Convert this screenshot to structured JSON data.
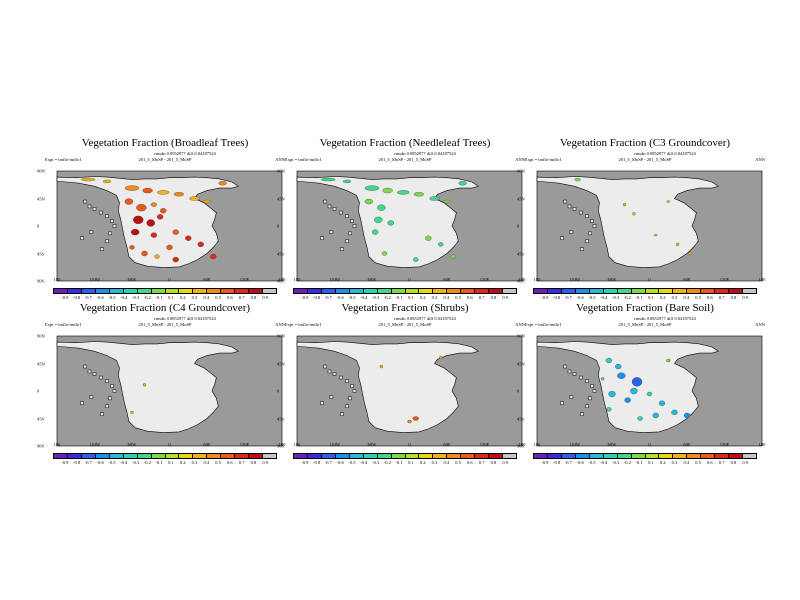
{
  "colors": {
    "ocean": "#9a9a9a",
    "land": "#ececec",
    "palette": [
      "#6a1fb8",
      "#3d2bd6",
      "#2a5fe8",
      "#1f8fe8",
      "#29b6d8",
      "#2fd0b8",
      "#3fd88a",
      "#7ad84a",
      "#b4de2a",
      "#e4d81a",
      "#f0b018",
      "#ec8a1a",
      "#e85a1a",
      "#dc2a1a",
      "#b81010",
      "#c4c4c4"
    ]
  },
  "colorbar_ticks": [
    "-0.9",
    "-0.8",
    "-0.7",
    "-0.6",
    "-0.5",
    "-0.4",
    "-0.3",
    "-0.2",
    "-0.1",
    "0.1",
    "0.2",
    "0.3",
    "0.4",
    "0.5",
    "0.6",
    "0.7",
    "0.8",
    "0.9"
  ],
  "x_ticks": [
    "180",
    "120W",
    "60W",
    "0",
    "60E",
    "120E",
    "180"
  ],
  "y_ticks": [
    "90N",
    "45N",
    "0",
    "45S",
    "90S"
  ],
  "chart_data": [
    {
      "type": "heatmap",
      "title": "Vegetation Fraction (Broadleaf Trees)",
      "stats": "rmsdn 0.0952977  diff 0.04187524",
      "expt": "Expt = tmflo-tmflo1",
      "sim": "201_5_MoSP - 201_5_MoSP",
      "period": "ANN",
      "features": [
        {
          "lon": -130,
          "lat": 76,
          "value": 0.2,
          "w": 14,
          "h": 3
        },
        {
          "lon": -100,
          "lat": 73,
          "value": 0.2,
          "w": 8,
          "h": 3
        },
        {
          "lon": -60,
          "lat": 62,
          "value": 0.4,
          "w": 14,
          "h": 5
        },
        {
          "lon": -35,
          "lat": 58,
          "value": 0.5,
          "w": 10,
          "h": 5
        },
        {
          "lon": -10,
          "lat": 55,
          "value": 0.3,
          "w": 12,
          "h": 4
        },
        {
          "lon": 15,
          "lat": 52,
          "value": 0.4,
          "w": 10,
          "h": 4
        },
        {
          "lon": 40,
          "lat": 45,
          "value": 0.3,
          "w": 10,
          "h": 4
        },
        {
          "lon": 60,
          "lat": 40,
          "value": 0.3,
          "w": 8,
          "h": 3
        },
        {
          "lon": 85,
          "lat": 70,
          "value": 0.4,
          "w": 8,
          "h": 4
        },
        {
          "lon": -65,
          "lat": 40,
          "value": 0.5,
          "w": 8,
          "h": 6
        },
        {
          "lon": -45,
          "lat": 30,
          "value": 0.6,
          "w": 10,
          "h": 7
        },
        {
          "lon": -25,
          "lat": 35,
          "value": 0.4,
          "w": 6,
          "h": 4
        },
        {
          "lon": -10,
          "lat": 25,
          "value": 0.6,
          "w": 6,
          "h": 5
        },
        {
          "lon": -50,
          "lat": 10,
          "value": 0.9,
          "w": 10,
          "h": 8
        },
        {
          "lon": -30,
          "lat": 5,
          "value": 0.9,
          "w": 8,
          "h": 7
        },
        {
          "lon": -15,
          "lat": 15,
          "value": 0.7,
          "w": 6,
          "h": 5
        },
        {
          "lon": -55,
          "lat": -10,
          "value": 0.8,
          "w": 8,
          "h": 6
        },
        {
          "lon": -25,
          "lat": -15,
          "value": 0.7,
          "w": 6,
          "h": 5
        },
        {
          "lon": 10,
          "lat": -10,
          "value": 0.6,
          "w": 6,
          "h": 5
        },
        {
          "lon": 30,
          "lat": -20,
          "value": 0.7,
          "w": 6,
          "h": 5
        },
        {
          "lon": 50,
          "lat": -30,
          "value": 0.7,
          "w": 6,
          "h": 5
        },
        {
          "lon": 0,
          "lat": -35,
          "value": 0.6,
          "w": 6,
          "h": 5
        },
        {
          "lon": -40,
          "lat": -45,
          "value": 0.5,
          "w": 6,
          "h": 5
        },
        {
          "lon": -20,
          "lat": -50,
          "value": 0.3,
          "w": 5,
          "h": 4
        },
        {
          "lon": 10,
          "lat": -55,
          "value": 0.7,
          "w": 6,
          "h": 5
        },
        {
          "lon": 70,
          "lat": -50,
          "value": 0.7,
          "w": 6,
          "h": 5
        },
        {
          "lon": -60,
          "lat": -35,
          "value": 0.5,
          "w": 5,
          "h": 4
        }
      ]
    },
    {
      "type": "heatmap",
      "title": "Vegetation Fraction (Needleleaf Trees)",
      "stats": "rmsdn 0.0852977  diff 0.04187524",
      "expt": "Expt = tmflo-tmflo1",
      "sim": "201_5_MoSP - 201_5_MoSP",
      "period": "ANN",
      "features": [
        {
          "lon": -130,
          "lat": 76,
          "value": -0.3,
          "w": 14,
          "h": 3
        },
        {
          "lon": -100,
          "lat": 73,
          "value": -0.3,
          "w": 8,
          "h": 3
        },
        {
          "lon": -60,
          "lat": 62,
          "value": -0.3,
          "w": 14,
          "h": 5
        },
        {
          "lon": -35,
          "lat": 58,
          "value": -0.2,
          "w": 10,
          "h": 5
        },
        {
          "lon": -10,
          "lat": 55,
          "value": -0.3,
          "w": 12,
          "h": 4
        },
        {
          "lon": 15,
          "lat": 52,
          "value": -0.2,
          "w": 10,
          "h": 4
        },
        {
          "lon": 40,
          "lat": 45,
          "value": -0.3,
          "w": 10,
          "h": 4
        },
        {
          "lon": 60,
          "lat": 40,
          "value": -0.2,
          "w": 8,
          "h": 3
        },
        {
          "lon": 85,
          "lat": 70,
          "value": -0.3,
          "w": 8,
          "h": 4
        },
        {
          "lon": -65,
          "lat": 40,
          "value": -0.2,
          "w": 8,
          "h": 5
        },
        {
          "lon": -45,
          "lat": 30,
          "value": -0.3,
          "w": 8,
          "h": 6
        },
        {
          "lon": -50,
          "lat": 10,
          "value": -0.3,
          "w": 8,
          "h": 6
        },
        {
          "lon": -30,
          "lat": 5,
          "value": -0.3,
          "w": 6,
          "h": 5
        },
        {
          "lon": -55,
          "lat": -10,
          "value": -0.3,
          "w": 6,
          "h": 5
        },
        {
          "lon": 30,
          "lat": -20,
          "value": -0.2,
          "w": 6,
          "h": 5
        },
        {
          "lon": 50,
          "lat": -30,
          "value": -0.3,
          "w": 5,
          "h": 4
        },
        {
          "lon": -40,
          "lat": -45,
          "value": -0.2,
          "w": 5,
          "h": 4
        },
        {
          "lon": 10,
          "lat": -55,
          "value": -0.3,
          "w": 5,
          "h": 4
        },
        {
          "lon": 70,
          "lat": -50,
          "value": -0.2,
          "w": 5,
          "h": 4
        }
      ]
    },
    {
      "type": "heatmap",
      "title": "Vegetation Fraction (C3 Groundcover)",
      "stats": "rmsdn 0.0852977  diff 0.04187524",
      "expt": "Expt = tmflo-tmflo1",
      "sim": "201_5_MoSP - 201_5_MoSP",
      "period": "ANN",
      "features": [
        {
          "lon": -115,
          "lat": 76,
          "value": -0.2,
          "w": 6,
          "h": 3
        },
        {
          "lon": -40,
          "lat": 35,
          "value": 0.3,
          "w": 3,
          "h": 3
        },
        {
          "lon": -25,
          "lat": 20,
          "value": 0.2,
          "w": 3,
          "h": 3
        },
        {
          "lon": 10,
          "lat": -15,
          "value": 0.2,
          "w": 3,
          "h": 2
        },
        {
          "lon": 45,
          "lat": -30,
          "value": 0.3,
          "w": 3,
          "h": 3
        },
        {
          "lon": 65,
          "lat": -45,
          "value": 0.2,
          "w": 3,
          "h": 3
        },
        {
          "lon": 30,
          "lat": 40,
          "value": 0.2,
          "w": 3,
          "h": 2
        }
      ]
    },
    {
      "type": "heatmap",
      "title": "Vegetation Fraction (C4 Groundcover)",
      "stats": "rmsdn 0.0852977  diff 0.04187524",
      "expt": "Expt = tmflo-tmflo1",
      "sim": "201_5_MoSP - 201_5_MoSP",
      "period": "ANN",
      "features": [
        {
          "lon": -40,
          "lat": 10,
          "value": 0.2,
          "w": 3,
          "h": 3
        },
        {
          "lon": -60,
          "lat": -35,
          "value": 0.3,
          "w": 3,
          "h": 3
        }
      ]
    },
    {
      "type": "heatmap",
      "title": "Vegetation Fraction (Shrubs)",
      "stats": "rmsdn 0.0852977  diff 0.04187524",
      "expt": "Expt = tmflo-tmflo1",
      "sim": "201_5_MoSP - 201_5_MoSP",
      "period": "ANN",
      "features": [
        {
          "lon": 50,
          "lat": 55,
          "value": 0.3,
          "w": 3,
          "h": 3
        },
        {
          "lon": -45,
          "lat": 40,
          "value": 0.2,
          "w": 3,
          "h": 3
        },
        {
          "lon": 10,
          "lat": -45,
          "value": 0.6,
          "w": 6,
          "h": 4
        },
        {
          "lon": 0,
          "lat": -50,
          "value": 0.4,
          "w": 4,
          "h": 3
        }
      ]
    },
    {
      "type": "heatmap",
      "title": "Vegetation Fraction (Bare Soil)",
      "stats": "rmsdn 0.0852977  diff 0.04187524",
      "expt": "Expt = tmflo-tmflo1",
      "sim": "201_5_MoSP - 201_5_MoSP",
      "period": "ANN",
      "features": [
        {
          "lon": -65,
          "lat": 50,
          "value": -0.4,
          "w": 6,
          "h": 5
        },
        {
          "lon": -50,
          "lat": 40,
          "value": -0.5,
          "w": 6,
          "h": 5
        },
        {
          "lon": -45,
          "lat": 25,
          "value": -0.6,
          "w": 8,
          "h": 6
        },
        {
          "lon": -20,
          "lat": 15,
          "value": -0.7,
          "w": 10,
          "h": 9
        },
        {
          "lon": -25,
          "lat": 0,
          "value": -0.5,
          "w": 7,
          "h": 6
        },
        {
          "lon": -60,
          "lat": -5,
          "value": -0.5,
          "w": 7,
          "h": 6
        },
        {
          "lon": -35,
          "lat": -15,
          "value": -0.6,
          "w": 6,
          "h": 5
        },
        {
          "lon": 0,
          "lat": -5,
          "value": -0.4,
          "w": 5,
          "h": 4
        },
        {
          "lon": 20,
          "lat": -20,
          "value": -0.5,
          "w": 6,
          "h": 5
        },
        {
          "lon": 40,
          "lat": -35,
          "value": -0.5,
          "w": 6,
          "h": 5
        },
        {
          "lon": 60,
          "lat": -40,
          "value": -0.6,
          "w": 6,
          "h": 5
        },
        {
          "lon": 10,
          "lat": -40,
          "value": -0.5,
          "w": 6,
          "h": 5
        },
        {
          "lon": -15,
          "lat": -45,
          "value": -0.4,
          "w": 5,
          "h": 4
        },
        {
          "lon": -65,
          "lat": -30,
          "value": -0.3,
          "w": 5,
          "h": 4
        },
        {
          "lon": -75,
          "lat": 20,
          "value": -0.3,
          "w": 3,
          "h": 3
        },
        {
          "lon": 30,
          "lat": 50,
          "value": -0.2,
          "w": 4,
          "h": 3
        }
      ]
    }
  ]
}
